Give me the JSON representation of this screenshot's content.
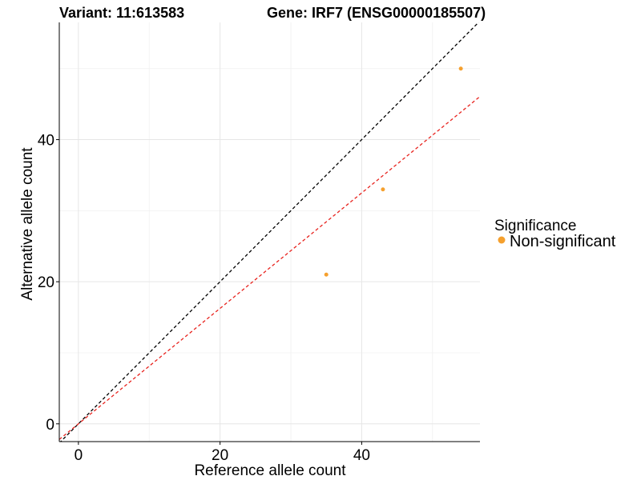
{
  "chart_data": {
    "type": "scatter",
    "title_left": "Variant: 11:613583",
    "title_right": "Gene: IRF7 (ENSG00000185507)",
    "xlabel": "Reference allele count",
    "ylabel": "Alternative allele count",
    "xlim": [
      -2.7,
      56.7
    ],
    "ylim": [
      -2.5,
      56.5
    ],
    "x_ticks": [
      0,
      20,
      40
    ],
    "y_ticks": [
      0,
      20,
      40
    ],
    "x_minor": [
      10,
      30,
      50
    ],
    "y_minor": [
      10,
      30,
      50
    ],
    "grid": true,
    "points": [
      {
        "x": 35,
        "y": 21
      },
      {
        "x": 43,
        "y": 33
      },
      {
        "x": 54,
        "y": 50
      }
    ],
    "point_color": "#F5A02E",
    "lines": [
      {
        "slope": 1.0,
        "intercept": 0,
        "color": "#000000",
        "style": "dashed"
      },
      {
        "slope": 0.8125,
        "intercept": 0,
        "color": "#E8231E",
        "style": "dashed"
      }
    ],
    "legend": {
      "title": "Significance",
      "position": "right",
      "items": [
        {
          "label": "Non-significant",
          "color": "#F5A02E"
        }
      ]
    }
  }
}
